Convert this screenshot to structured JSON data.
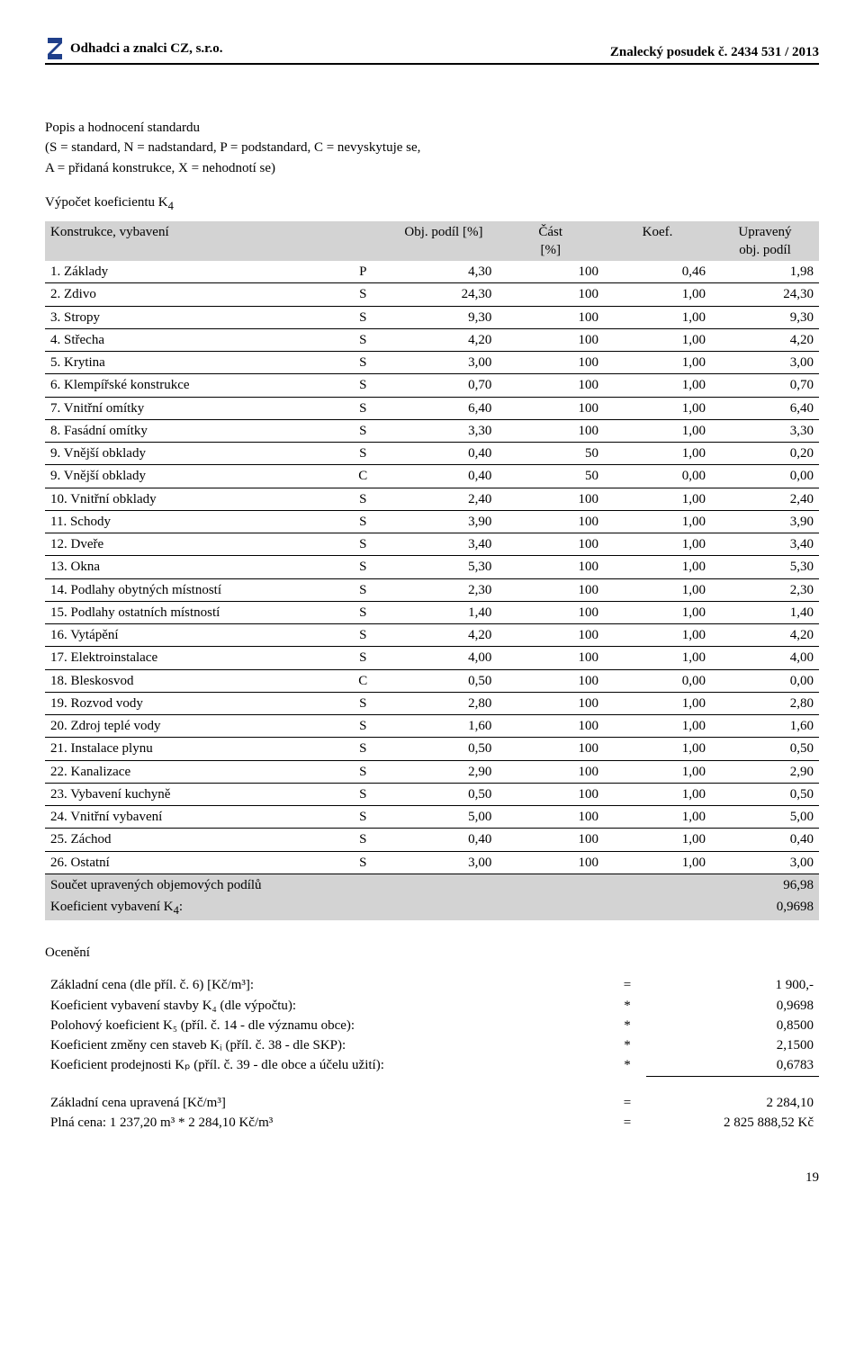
{
  "header": {
    "left": "Odhadci a znalci CZ, s.r.o.",
    "right": "Znalecký posudek č. 2434 531 / 2013"
  },
  "intro": {
    "title": "Popis a hodnocení standardu",
    "line2": "(S = standard, N = nadstandard, P = podstandard, C = nevyskytuje se,",
    "line3": "A = přidaná konstrukce, X = nehodnotí se)",
    "sec": "Výpočet koeficientu K",
    "sec_sub": "4"
  },
  "table": {
    "hcol1": "Konstrukce, vybavení",
    "hcol2": "Obj. podíl [%]",
    "hcol3a": "Část",
    "hcol3b": "[%]",
    "hcol4": "Koef.",
    "hcol5a": "Upravený",
    "hcol5b": "obj. podíl",
    "rows": [
      {
        "name": "1. Základy",
        "s": "P",
        "op": "4,30",
        "cast": "100",
        "koef": "0,46",
        "up": "1,98"
      },
      {
        "name": "2. Zdivo",
        "s": "S",
        "op": "24,30",
        "cast": "100",
        "koef": "1,00",
        "up": "24,30"
      },
      {
        "name": "3. Stropy",
        "s": "S",
        "op": "9,30",
        "cast": "100",
        "koef": "1,00",
        "up": "9,30"
      },
      {
        "name": "4. Střecha",
        "s": "S",
        "op": "4,20",
        "cast": "100",
        "koef": "1,00",
        "up": "4,20"
      },
      {
        "name": "5. Krytina",
        "s": "S",
        "op": "3,00",
        "cast": "100",
        "koef": "1,00",
        "up": "3,00"
      },
      {
        "name": "6. Klempířské konstrukce",
        "s": "S",
        "op": "0,70",
        "cast": "100",
        "koef": "1,00",
        "up": "0,70"
      },
      {
        "name": "7. Vnitřní omítky",
        "s": "S",
        "op": "6,40",
        "cast": "100",
        "koef": "1,00",
        "up": "6,40"
      },
      {
        "name": "8. Fasádní omítky",
        "s": "S",
        "op": "3,30",
        "cast": "100",
        "koef": "1,00",
        "up": "3,30"
      },
      {
        "name": "9. Vnější obklady",
        "s": "S",
        "op": "0,40",
        "cast": "50",
        "koef": "1,00",
        "up": "0,20"
      },
      {
        "name": "9. Vnější obklady",
        "s": "C",
        "op": "0,40",
        "cast": "50",
        "koef": "0,00",
        "up": "0,00"
      },
      {
        "name": "10. Vnitřní obklady",
        "s": "S",
        "op": "2,40",
        "cast": "100",
        "koef": "1,00",
        "up": "2,40"
      },
      {
        "name": "11. Schody",
        "s": "S",
        "op": "3,90",
        "cast": "100",
        "koef": "1,00",
        "up": "3,90"
      },
      {
        "name": "12. Dveře",
        "s": "S",
        "op": "3,40",
        "cast": "100",
        "koef": "1,00",
        "up": "3,40"
      },
      {
        "name": "13. Okna",
        "s": "S",
        "op": "5,30",
        "cast": "100",
        "koef": "1,00",
        "up": "5,30"
      },
      {
        "name": "14. Podlahy obytných místností",
        "s": "S",
        "op": "2,30",
        "cast": "100",
        "koef": "1,00",
        "up": "2,30"
      },
      {
        "name": "15. Podlahy ostatních místností",
        "s": "S",
        "op": "1,40",
        "cast": "100",
        "koef": "1,00",
        "up": "1,40"
      },
      {
        "name": "16. Vytápění",
        "s": "S",
        "op": "4,20",
        "cast": "100",
        "koef": "1,00",
        "up": "4,20"
      },
      {
        "name": "17. Elektroinstalace",
        "s": "S",
        "op": "4,00",
        "cast": "100",
        "koef": "1,00",
        "up": "4,00"
      },
      {
        "name": "18. Bleskosvod",
        "s": "C",
        "op": "0,50",
        "cast": "100",
        "koef": "0,00",
        "up": "0,00"
      },
      {
        "name": "19. Rozvod vody",
        "s": "S",
        "op": "2,80",
        "cast": "100",
        "koef": "1,00",
        "up": "2,80"
      },
      {
        "name": "20. Zdroj teplé vody",
        "s": "S",
        "op": "1,60",
        "cast": "100",
        "koef": "1,00",
        "up": "1,60"
      },
      {
        "name": "21. Instalace plynu",
        "s": "S",
        "op": "0,50",
        "cast": "100",
        "koef": "1,00",
        "up": "0,50"
      },
      {
        "name": "22. Kanalizace",
        "s": "S",
        "op": "2,90",
        "cast": "100",
        "koef": "1,00",
        "up": "2,90"
      },
      {
        "name": "23. Vybavení kuchyně",
        "s": "S",
        "op": "0,50",
        "cast": "100",
        "koef": "1,00",
        "up": "0,50"
      },
      {
        "name": "24. Vnitřní vybavení",
        "s": "S",
        "op": "5,00",
        "cast": "100",
        "koef": "1,00",
        "up": "5,00"
      },
      {
        "name": "25. Záchod",
        "s": "S",
        "op": "0,40",
        "cast": "100",
        "koef": "1,00",
        "up": "0,40"
      },
      {
        "name": "26. Ostatní",
        "s": "S",
        "op": "3,00",
        "cast": "100",
        "koef": "1,00",
        "up": "3,00"
      }
    ],
    "sum_label": "Součet upravených objemových podílů",
    "sum_val": "96,98",
    "k4_label_a": "Koeficient vybavení K",
    "k4_label_b": "4",
    "k4_label_c": ":",
    "k4_val": "0,9698"
  },
  "ocen": {
    "title": "Ocenění",
    "rows": [
      {
        "label": "Základní cena (dle příl. č. 6) [Kč/m³]:",
        "eq": "=",
        "val": "1 900,-"
      },
      {
        "label": "Koeficient vybavení stavby K₄ (dle výpočtu):",
        "eq": "*",
        "val": "0,9698"
      },
      {
        "label": "Polohový koeficient K₅ (příl. č. 14 - dle významu obce):",
        "eq": "*",
        "val": "0,8500"
      },
      {
        "label": "Koeficient změny cen staveb Kᵢ (příl. č. 38 - dle SKP):",
        "eq": "*",
        "val": "2,1500"
      },
      {
        "label": "Koeficient prodejnosti Kₚ (příl. č. 39 - dle obce a účelu užití):",
        "eq": "*",
        "val": "0,6783",
        "rule": true
      }
    ],
    "final": [
      {
        "label": "Základní cena upravená         [Kč/m³]",
        "eq": "=",
        "val": "2 284,10"
      },
      {
        "label": "Plná cena:            1 237,20 m³ * 2 284,10 Kč/m³",
        "eq": "=",
        "val": "2 825 888,52 Kč"
      }
    ]
  },
  "pagenum": "19",
  "logo_colors": {
    "stroke": "#1f3f8a",
    "fill": "#1f3f8a"
  }
}
